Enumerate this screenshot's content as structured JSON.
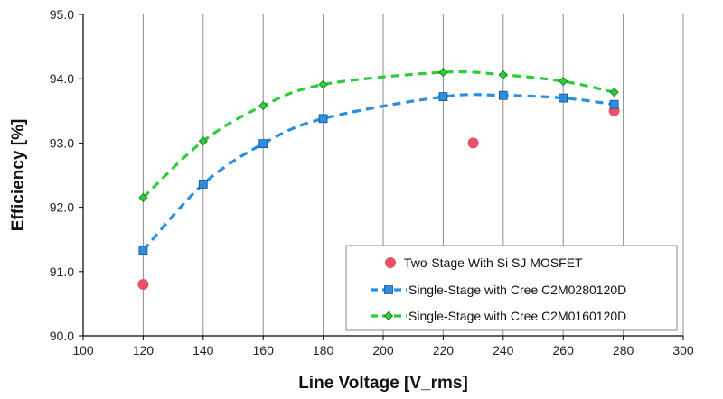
{
  "chart_data": {
    "type": "scatter",
    "xlabel": "Line Voltage [V_rms]",
    "ylabel": "Efficiency [%]",
    "xlim": [
      100,
      300
    ],
    "ylim": [
      90.0,
      95.0
    ],
    "x_ticks": [
      100,
      120,
      140,
      160,
      180,
      200,
      220,
      240,
      260,
      280,
      300
    ],
    "y_ticks": [
      90.0,
      91.0,
      92.0,
      93.0,
      94.0,
      95.0
    ],
    "y_tick_labels": [
      "90.0",
      "91.0",
      "92.0",
      "93.0",
      "94.0",
      "95.0"
    ],
    "grid": "vertical",
    "legend_position": "bottom-right",
    "series": [
      {
        "name": "Two-Stage With Si SJ MOSFET",
        "marker": "circle",
        "line": "none",
        "color": "#e8506a",
        "x": [
          120,
          230,
          277
        ],
        "y": [
          90.8,
          93.0,
          93.5
        ]
      },
      {
        "name": "Single-Stage with Cree C2M0280120D",
        "marker": "square",
        "line": "dashed-smooth",
        "color": "#2a8fe0",
        "x": [
          120,
          140,
          160,
          180,
          220,
          240,
          260,
          277
        ],
        "y": [
          91.33,
          92.36,
          92.99,
          93.38,
          93.72,
          93.74,
          93.7,
          93.6
        ]
      },
      {
        "name": "Single-Stage with Cree C2M0160120D",
        "marker": "diamond",
        "line": "dashed-smooth",
        "color": "#2dcc3a",
        "x": [
          120,
          140,
          160,
          180,
          220,
          240,
          260,
          277
        ],
        "y": [
          92.15,
          93.03,
          93.58,
          93.91,
          94.1,
          94.06,
          93.96,
          93.79
        ]
      }
    ]
  }
}
